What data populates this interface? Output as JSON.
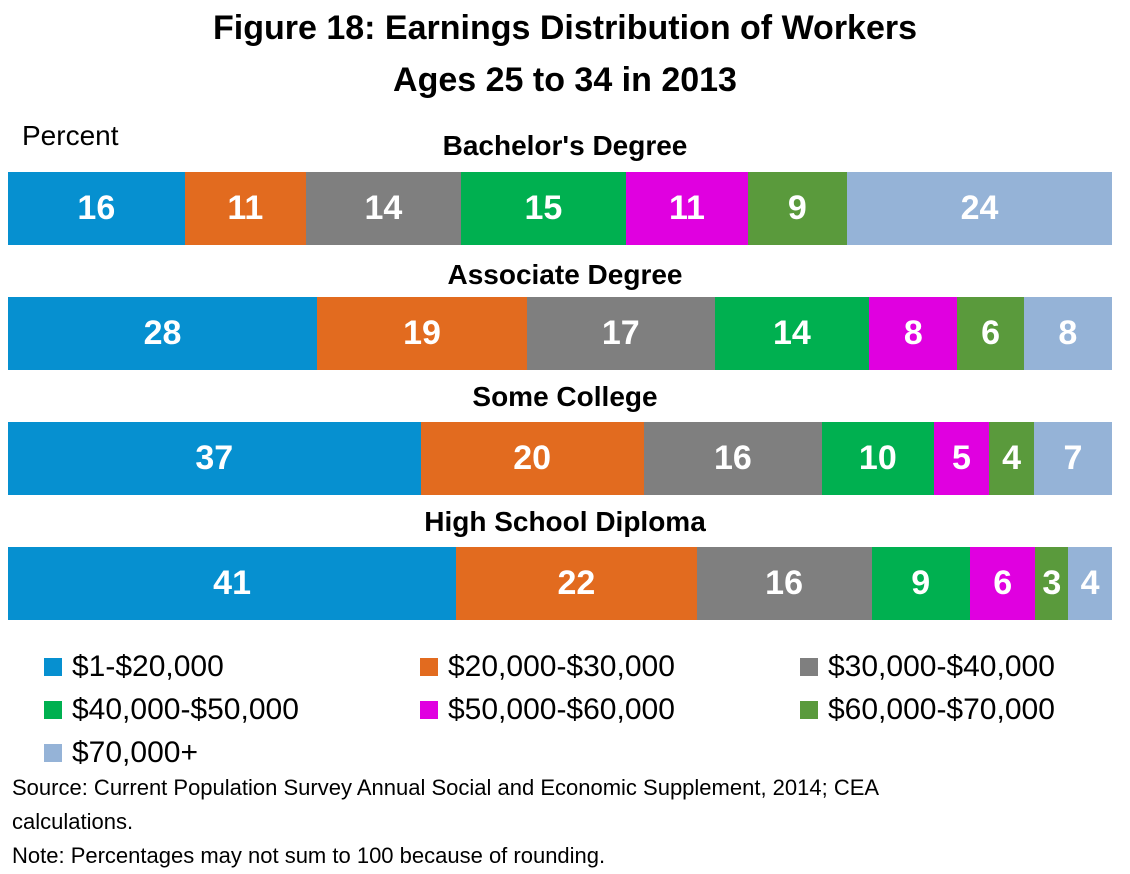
{
  "title": {
    "line1": "Figure 18: Earnings Distribution of Workers",
    "line2": "Ages 25 to 34 in 2013"
  },
  "chart_data": {
    "type": "bar",
    "orientation": "horizontal-stacked",
    "title": "Figure 18: Earnings Distribution of Workers Ages 25 to 34 in 2013",
    "ylabel": "Percent",
    "categories": [
      "Bachelor's Degree",
      "Associate Degree",
      "Some College",
      "High School Diploma"
    ],
    "series": [
      {
        "name": "$1-$20,000",
        "color": "#0690d0",
        "values": [
          16,
          28,
          37,
          41
        ]
      },
      {
        "name": "$20,000-$30,000",
        "color": "#e26b1f",
        "values": [
          11,
          19,
          20,
          22
        ]
      },
      {
        "name": "$30,000-$40,000",
        "color": "#7f7f7f",
        "values": [
          14,
          17,
          16,
          16
        ]
      },
      {
        "name": "$40,000-$50,000",
        "color": "#00b050",
        "values": [
          15,
          14,
          10,
          9
        ]
      },
      {
        "name": "$50,000-$60,000",
        "color": "#e000e0",
        "values": [
          11,
          8,
          5,
          6
        ]
      },
      {
        "name": "$60,000-$70,000",
        "color": "#5a9a3c",
        "values": [
          9,
          6,
          4,
          3
        ]
      },
      {
        "name": "$70,000+",
        "color": "#95b3d7",
        "values": [
          24,
          8,
          7,
          4
        ]
      }
    ],
    "legend": "bottom",
    "grid": false
  },
  "source": {
    "line1": "Source: Current Population Survey Annual Social and Economic Supplement, 2014; CEA",
    "line2": "calculations.",
    "line3": "Note: Percentages may not sum to 100 because of rounding."
  }
}
